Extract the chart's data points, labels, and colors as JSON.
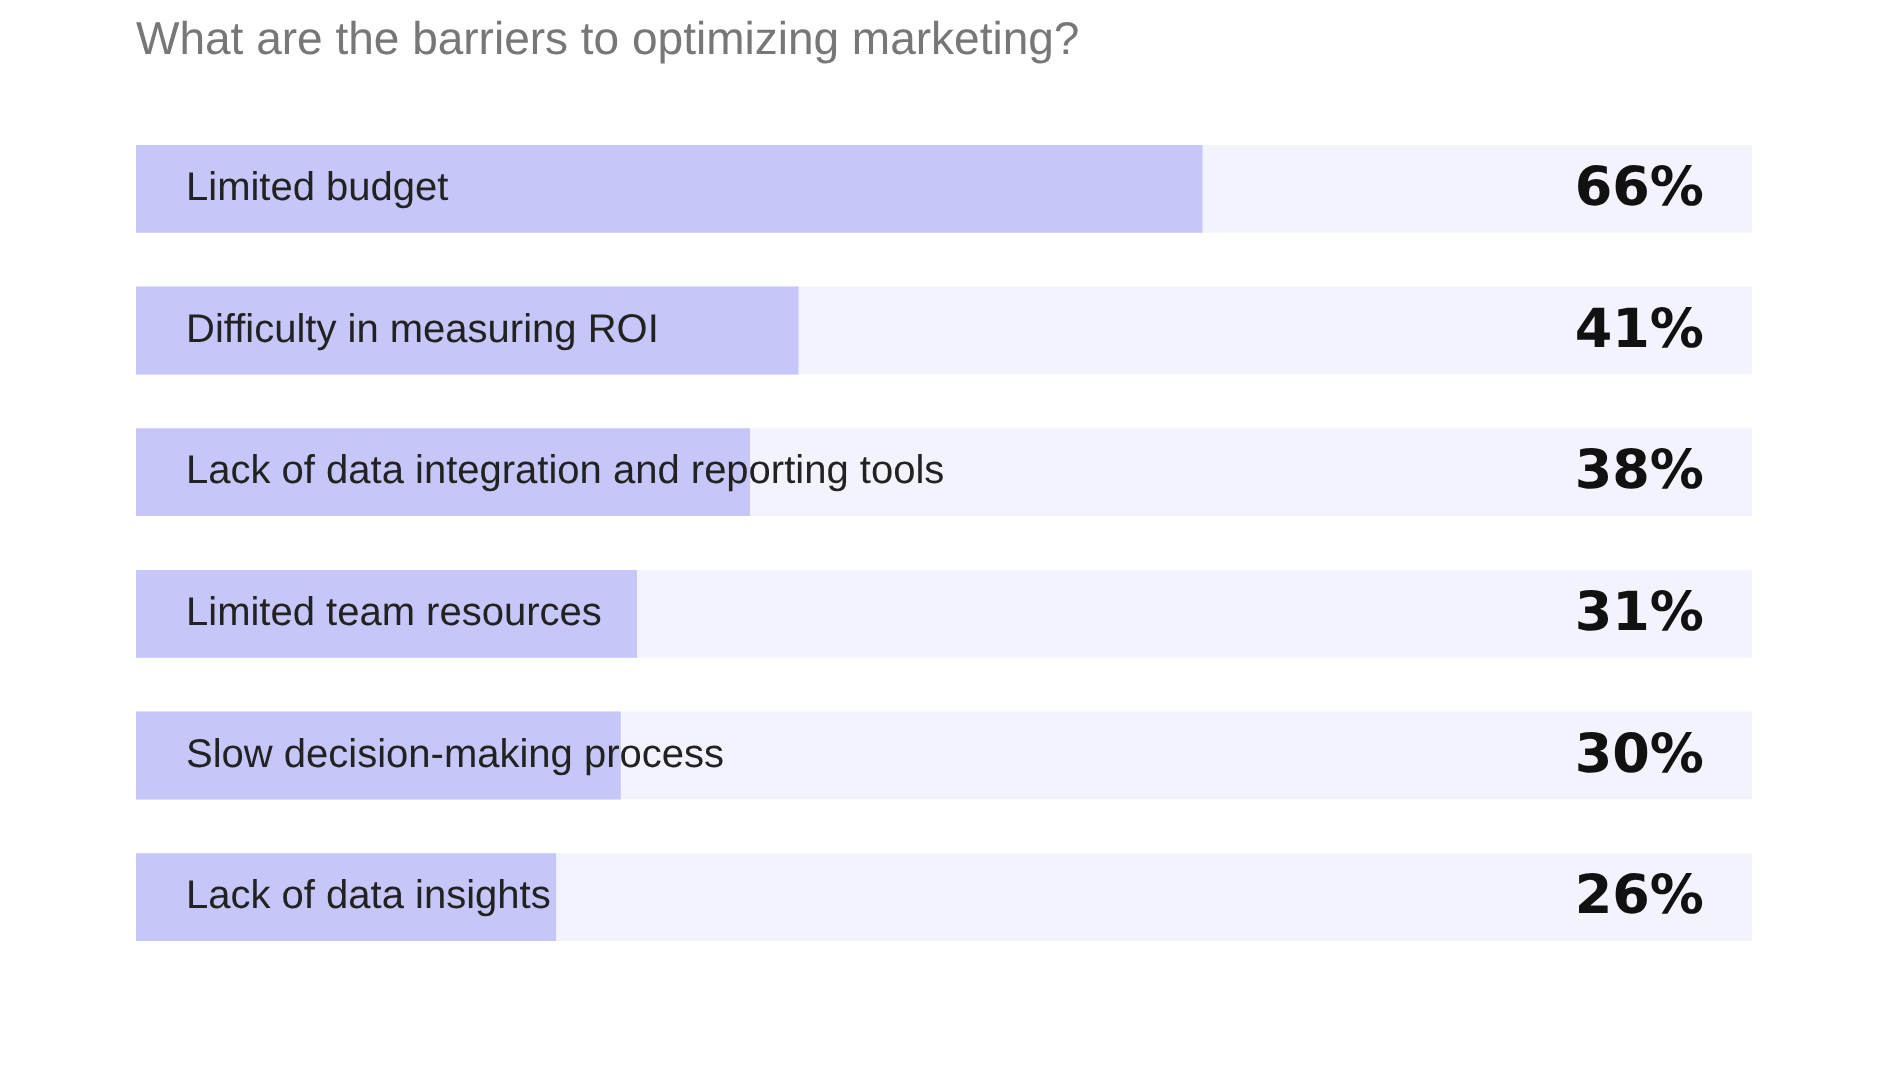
{
  "chart_data": {
    "type": "bar",
    "orientation": "horizontal",
    "title": "What are the barriers to optimizing marketing?",
    "categories": [
      "Limited budget",
      "Difficulty in measuring ROI",
      "Lack of data integration and reporting tools",
      "Limited team resources",
      "Slow decision-making process",
      "Lack of data insights"
    ],
    "values": [
      66,
      41,
      38,
      31,
      30,
      26
    ],
    "value_labels": [
      "66%",
      "41%",
      "38%",
      "31%",
      "30%",
      "26%"
    ],
    "color": "#c6c6f8",
    "xlim": [
      0,
      100
    ]
  }
}
